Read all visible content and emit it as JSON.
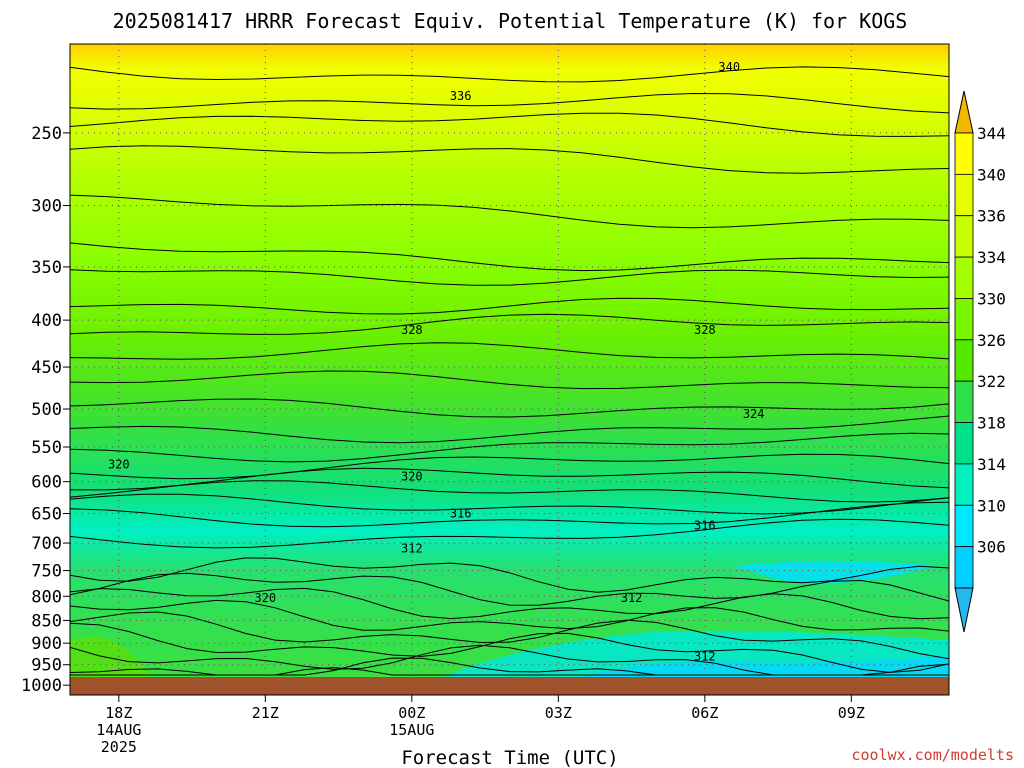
{
  "chart_data": {
    "type": "heatmap",
    "title": "2025081417 HRRR Forecast Equiv. Potential Temperature (K) for KOGS",
    "xlabel": "Forecast Time (UTC)",
    "ylabel": "",
    "credit": "coolwx.com/modelts",
    "y_scale": "log",
    "ylim": [
      1025,
      200
    ],
    "y_ticks": [
      {
        "value": 250,
        "label": "250"
      },
      {
        "value": 300,
        "label": "300"
      },
      {
        "value": 350,
        "label": "350"
      },
      {
        "value": 400,
        "label": "400"
      },
      {
        "value": 450,
        "label": "450"
      },
      {
        "value": 500,
        "label": "500"
      },
      {
        "value": 550,
        "label": "550"
      },
      {
        "value": 600,
        "label": "600"
      },
      {
        "value": 650,
        "label": "650"
      },
      {
        "value": 700,
        "label": "700"
      },
      {
        "value": 750,
        "label": "750"
      },
      {
        "value": 800,
        "label": "800"
      },
      {
        "value": 850,
        "label": "850"
      },
      {
        "value": 900,
        "label": "900"
      },
      {
        "value": 950,
        "label": "950"
      },
      {
        "value": 1000,
        "label": "1000"
      }
    ],
    "x_ticks": [
      {
        "time": "18Z 14 Aug 2025",
        "lines": [
          "18Z",
          "14AUG",
          "2025"
        ]
      },
      {
        "time": "21Z 14 Aug 2025",
        "lines": [
          "21Z"
        ]
      },
      {
        "time": "00Z 15 Aug 2025",
        "lines": [
          "00Z",
          "15AUG"
        ]
      },
      {
        "time": "03Z 15 Aug 2025",
        "lines": [
          "03Z"
        ]
      },
      {
        "time": "06Z 15 Aug 2025",
        "lines": [
          "06Z"
        ]
      },
      {
        "time": "09Z 15 Aug 2025",
        "lines": [
          "09Z"
        ]
      }
    ],
    "x_range": [
      "17Z 14 Aug 2025",
      "11Z 15 Aug 2025"
    ],
    "grid": true,
    "colorbar": {
      "labels": [
        "344",
        "340",
        "336",
        "334",
        "330",
        "326",
        "322",
        "318",
        "314",
        "310",
        "306"
      ],
      "colors": [
        "#f2b800",
        "#ffff00",
        "#e6ff00",
        "#c8ff00",
        "#a6ff00",
        "#7af500",
        "#55e800",
        "#2ee04a",
        "#00e08a",
        "#00f0c0",
        "#00e8ff",
        "#00cfff",
        "#25b7ee"
      ]
    },
    "contour_labels": [
      {
        "text": "340",
        "time": "06:30",
        "p": 212
      },
      {
        "text": "336",
        "time": "01:00",
        "p": 228
      },
      {
        "text": "328",
        "time": "00:00",
        "p": 410
      },
      {
        "text": "328",
        "time": "06:00",
        "p": 410
      },
      {
        "text": "324",
        "time": "07:00",
        "p": 506
      },
      {
        "text": "320",
        "time": "18:00",
        "p": 575
      },
      {
        "text": "320",
        "time": "00:00",
        "p": 592
      },
      {
        "text": "316",
        "time": "01:00",
        "p": 650
      },
      {
        "text": "316",
        "time": "06:00",
        "p": 670
      },
      {
        "text": "312",
        "time": "00:00",
        "p": 710
      },
      {
        "text": "320",
        "time": "21:00",
        "p": 803
      },
      {
        "text": "312",
        "time": "04:30",
        "p": 803
      },
      {
        "text": "312",
        "time": "06:00",
        "p": 930
      }
    ]
  }
}
